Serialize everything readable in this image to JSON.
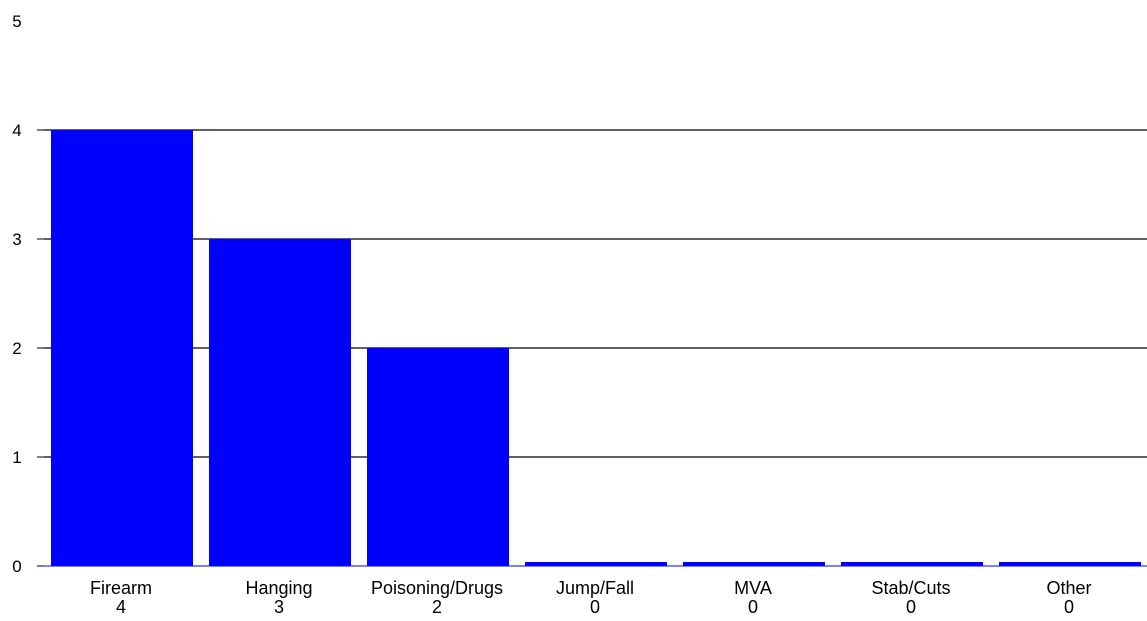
{
  "chart_data": {
    "type": "bar",
    "categories": [
      "Firearm",
      "Hanging",
      "Poisoning/Drugs",
      "Jump/Fall",
      "MVA",
      "Stab/Cuts",
      "Other"
    ],
    "values": [
      4,
      3,
      2,
      0,
      0,
      0,
      0
    ],
    "value_labels": [
      "4",
      "3",
      "2",
      "0",
      "0",
      "0",
      "0"
    ],
    "ylim": [
      0,
      5
    ],
    "yticks": [
      0,
      1,
      2,
      3,
      4,
      5
    ],
    "gridlines": [
      1,
      2,
      3,
      4
    ],
    "grid": true,
    "legend": "none",
    "bar_color": "#0000ff",
    "title": "",
    "xlabel": "",
    "ylabel": ""
  }
}
